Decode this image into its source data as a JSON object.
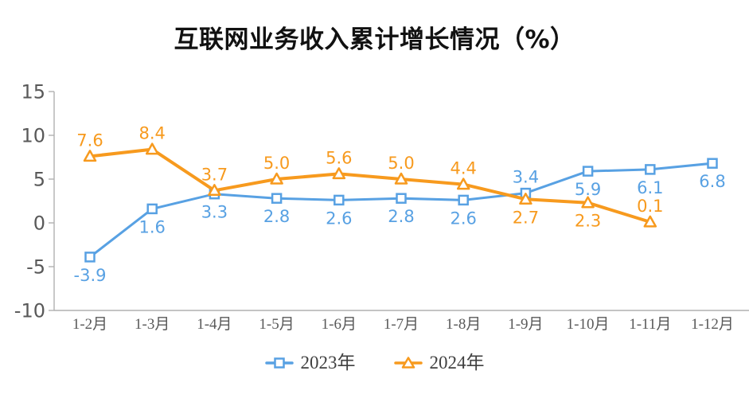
{
  "chart_data": {
    "type": "line",
    "title": "互联网业务收入累计增长情况（%）",
    "categories": [
      "1-2月",
      "1-3月",
      "1-4月",
      "1-5月",
      "1-6月",
      "1-7月",
      "1-8月",
      "1-9月",
      "1-10月",
      "1-11月",
      "1-12月"
    ],
    "series": [
      {
        "name": "2023年",
        "marker": "square",
        "color": "#58A1E3",
        "values": [
          -3.9,
          1.6,
          3.3,
          2.8,
          2.6,
          2.8,
          2.6,
          3.4,
          5.9,
          6.1,
          6.8
        ],
        "label_side": [
          "below",
          "below",
          "below",
          "below",
          "below",
          "below",
          "below",
          "above",
          "below",
          "below",
          "below"
        ]
      },
      {
        "name": "2024年",
        "marker": "triangle",
        "color": "#F79A1E",
        "values": [
          7.6,
          8.4,
          3.7,
          5.0,
          5.6,
          5.0,
          4.4,
          2.7,
          2.3,
          0.1
        ],
        "label_side": [
          "above",
          "above",
          "above",
          "above",
          "above",
          "above",
          "above",
          "below",
          "below",
          "above"
        ]
      }
    ],
    "ylim": [
      -10,
      15
    ],
    "yticks": [
      15,
      10,
      5,
      0,
      -5,
      -10
    ],
    "grid": false,
    "legend_position": "bottom",
    "colors": {
      "axis_line": "#B0B0B0",
      "tick_label": "#595959",
      "legend_text": "#404040",
      "title_text": "#111111",
      "background": "#FFFFFF"
    }
  }
}
